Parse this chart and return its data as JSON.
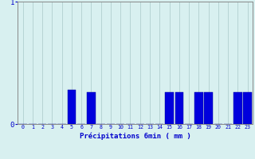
{
  "xlabel": "Précipitations 6min ( mm )",
  "ylabel": "",
  "hours": [
    0,
    1,
    2,
    3,
    4,
    5,
    6,
    7,
    8,
    9,
    10,
    11,
    12,
    13,
    14,
    15,
    16,
    17,
    18,
    19,
    20,
    21,
    22,
    23
  ],
  "values": [
    0,
    0,
    0,
    0,
    0,
    0.28,
    0,
    0.26,
    0,
    0,
    0,
    0,
    0,
    0,
    0,
    0.26,
    0.26,
    0,
    0.26,
    0.26,
    0,
    0,
    0.26,
    0.26
  ],
  "bar_color": "#0000dd",
  "bar_edge_color": "#000099",
  "background_color": "#d8f0f0",
  "grid_color": "#aac8c8",
  "axis_color": "#888888",
  "text_color": "#0000cc",
  "ylim": [
    0,
    1.0
  ],
  "yticks": [
    0,
    1
  ],
  "xlim": [
    -0.5,
    23.5
  ],
  "bar_width": 0.85
}
